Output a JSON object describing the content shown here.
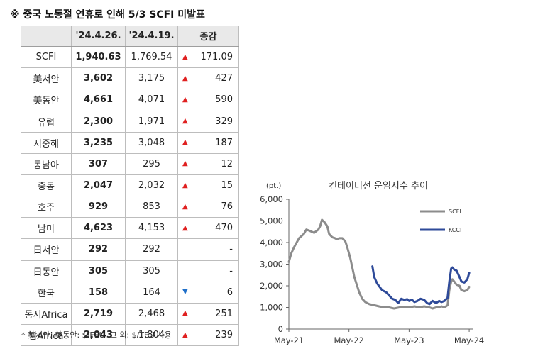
{
  "title": "※ 중국 노동절 연휴로 인해 5/3 SCFI 미발표",
  "table": {
    "headers": [
      "",
      "'24.4.26.",
      "'24.4.19.",
      "증감"
    ],
    "rows": [
      {
        "label": "SCFI",
        "cur": "1,940.63",
        "prev": "1,769.54",
        "dir": "up",
        "chg": "171.09"
      },
      {
        "label": "美서안",
        "cur": "3,602",
        "prev": "3,175",
        "dir": "up",
        "chg": "427"
      },
      {
        "label": "美동안",
        "cur": "4,661",
        "prev": "4,071",
        "dir": "up",
        "chg": "590"
      },
      {
        "label": "유럽",
        "cur": "2,300",
        "prev": "1,971",
        "dir": "up",
        "chg": "329"
      },
      {
        "label": "지중해",
        "cur": "3,235",
        "prev": "3,048",
        "dir": "up",
        "chg": "187"
      },
      {
        "label": "동남아",
        "cur": "307",
        "prev": "295",
        "dir": "up",
        "chg": "12"
      },
      {
        "label": "중동",
        "cur": "2,047",
        "prev": "2,032",
        "dir": "up",
        "chg": "15"
      },
      {
        "label": "호주",
        "cur": "929",
        "prev": "853",
        "dir": "up",
        "chg": "76"
      },
      {
        "label": "남미",
        "cur": "4,623",
        "prev": "4,153",
        "dir": "up",
        "chg": "470"
      },
      {
        "label": "日서안",
        "cur": "292",
        "prev": "292",
        "dir": "none",
        "chg": "-"
      },
      {
        "label": "日동안",
        "cur": "305",
        "prev": "305",
        "dir": "none",
        "chg": "-"
      },
      {
        "label": "한국",
        "cur": "158",
        "prev": "164",
        "dir": "down",
        "chg": "6"
      },
      {
        "label": "동서Africa",
        "cur": "2,719",
        "prev": "2,468",
        "dir": "up",
        "chg": "251"
      },
      {
        "label": "남Africa",
        "cur": "2,043",
        "prev": "1,804",
        "dir": "up",
        "chg": "239"
      }
    ]
  },
  "footnote": "* 美서안, 美동안: $/FEU, 그 외: $/TEU 사용",
  "chart_data": {
    "type": "line",
    "title": "컨테이너선 운임지수 추이",
    "ylabel": "(pt.)",
    "ylim": [
      0,
      6000
    ],
    "yticks": [
      0,
      1000,
      2000,
      3000,
      4000,
      5000,
      6000
    ],
    "ytick_labels": [
      "0",
      "1,000",
      "2,000",
      "3,000",
      "4,000",
      "5,000",
      "6,000"
    ],
    "xlim": [
      2021.33,
      2024.4
    ],
    "xtick_positions": [
      2021.33,
      2022.33,
      2023.33,
      2024.33
    ],
    "xtick_labels": [
      "May-21",
      "May-22",
      "May-23",
      "May-24"
    ],
    "legend_position": "right",
    "series": [
      {
        "name": "SCFI",
        "color": "#8c8c8c",
        "x": [
          2021.33,
          2021.37,
          2021.42,
          2021.5,
          2021.58,
          2021.62,
          2021.67,
          2021.75,
          2021.82,
          2021.85,
          2021.88,
          2021.92,
          2021.97,
          2022.0,
          2022.05,
          2022.1,
          2022.13,
          2022.17,
          2022.22,
          2022.27,
          2022.3,
          2022.35,
          2022.42,
          2022.5,
          2022.55,
          2022.6,
          2022.67,
          2022.75,
          2022.83,
          2022.92,
          2023.0,
          2023.08,
          2023.17,
          2023.25,
          2023.33,
          2023.42,
          2023.5,
          2023.58,
          2023.67,
          2023.72,
          2023.78,
          2023.83,
          2023.87,
          2023.92,
          2023.97,
          2024.0,
          2024.03,
          2024.05,
          2024.08,
          2024.12,
          2024.17,
          2024.2,
          2024.25,
          2024.3,
          2024.33
        ],
        "values": [
          3100,
          3500,
          3800,
          4200,
          4400,
          4600,
          4550,
          4450,
          4600,
          4750,
          5050,
          4950,
          4750,
          4400,
          4250,
          4200,
          4150,
          4200,
          4200,
          4050,
          3800,
          3300,
          2400,
          1700,
          1400,
          1250,
          1150,
          1100,
          1050,
          1000,
          1000,
          950,
          1000,
          1000,
          1000,
          1050,
          1000,
          1050,
          1000,
          950,
          1000,
          1000,
          1050,
          1000,
          1100,
          1800,
          2200,
          2300,
          2200,
          2050,
          2000,
          1800,
          1750,
          1800,
          1950
        ]
      },
      {
        "name": "KCCI",
        "color": "#2e4a99",
        "x": [
          2022.72,
          2022.75,
          2022.8,
          2022.88,
          2022.95,
          2023.0,
          2023.05,
          2023.1,
          2023.15,
          2023.2,
          2023.25,
          2023.3,
          2023.33,
          2023.38,
          2023.42,
          2023.47,
          2023.52,
          2023.58,
          2023.63,
          2023.67,
          2023.72,
          2023.78,
          2023.83,
          2023.87,
          2023.92,
          2023.97,
          2024.0,
          2024.03,
          2024.05,
          2024.08,
          2024.12,
          2024.17,
          2024.2,
          2024.25,
          2024.3,
          2024.33
        ],
        "values": [
          2900,
          2400,
          2100,
          1800,
          1700,
          1550,
          1400,
          1350,
          1200,
          1400,
          1350,
          1380,
          1300,
          1350,
          1250,
          1300,
          1400,
          1350,
          1200,
          1150,
          1300,
          1200,
          1300,
          1250,
          1300,
          1450,
          2200,
          2800,
          2850,
          2750,
          2700,
          2400,
          2200,
          2150,
          2300,
          2600
        ]
      }
    ]
  }
}
